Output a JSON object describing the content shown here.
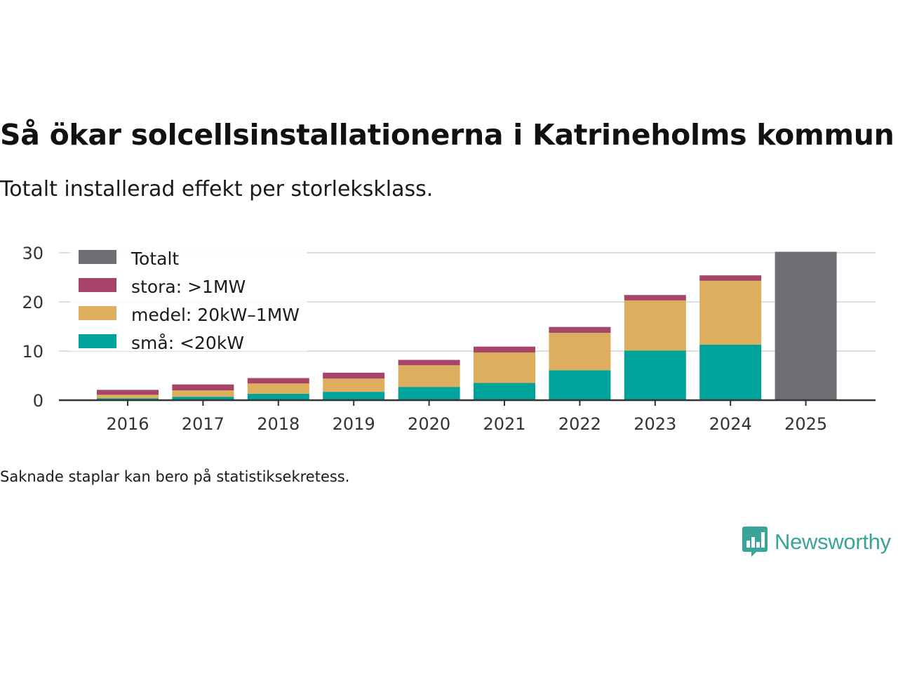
{
  "title": "Så ökar solcellsinstallationerna i Katrineholms kommun",
  "subtitle": "Totalt installerad effekt per storleksklass.",
  "note": "Saknade staplar kan bero på statistiksekretess.",
  "brand": {
    "name": "Newsworthy",
    "logo_icon": "bar-chart-speech-bubble-icon",
    "color": "#3aa39a"
  },
  "chart_data": {
    "type": "bar",
    "stacked": true,
    "categories": [
      "2016",
      "2017",
      "2018",
      "2019",
      "2020",
      "2021",
      "2022",
      "2023",
      "2024",
      "2025"
    ],
    "series": [
      {
        "name": "små: <20kW",
        "color": "#00a39a",
        "values": [
          0.4,
          0.7,
          1.3,
          1.7,
          2.7,
          3.5,
          6.1,
          10.1,
          11.3,
          null
        ]
      },
      {
        "name": "medel: 20kW–1MW",
        "color": "#dcae5d",
        "values": [
          0.7,
          1.3,
          2.1,
          2.7,
          4.4,
          6.2,
          7.6,
          10.2,
          13.0,
          null
        ]
      },
      {
        "name": "stora: >1MW",
        "color": "#a6446a",
        "values": [
          1.0,
          1.2,
          1.1,
          1.2,
          1.1,
          1.2,
          1.2,
          1.1,
          1.1,
          null
        ]
      },
      {
        "name": "Totalt",
        "color": "#6f6e75",
        "values": [
          null,
          null,
          null,
          null,
          null,
          null,
          null,
          null,
          null,
          30.2
        ]
      }
    ],
    "legend": [
      "Totalt",
      "stora: >1MW",
      "medel: 20kW–1MW",
      "små: <20kW"
    ],
    "legend_position": "top-left",
    "yticks": [
      "0",
      "10",
      "20",
      "30"
    ],
    "ylim": [
      0,
      30.5
    ],
    "xlabel": "",
    "ylabel": "",
    "grid": true
  }
}
